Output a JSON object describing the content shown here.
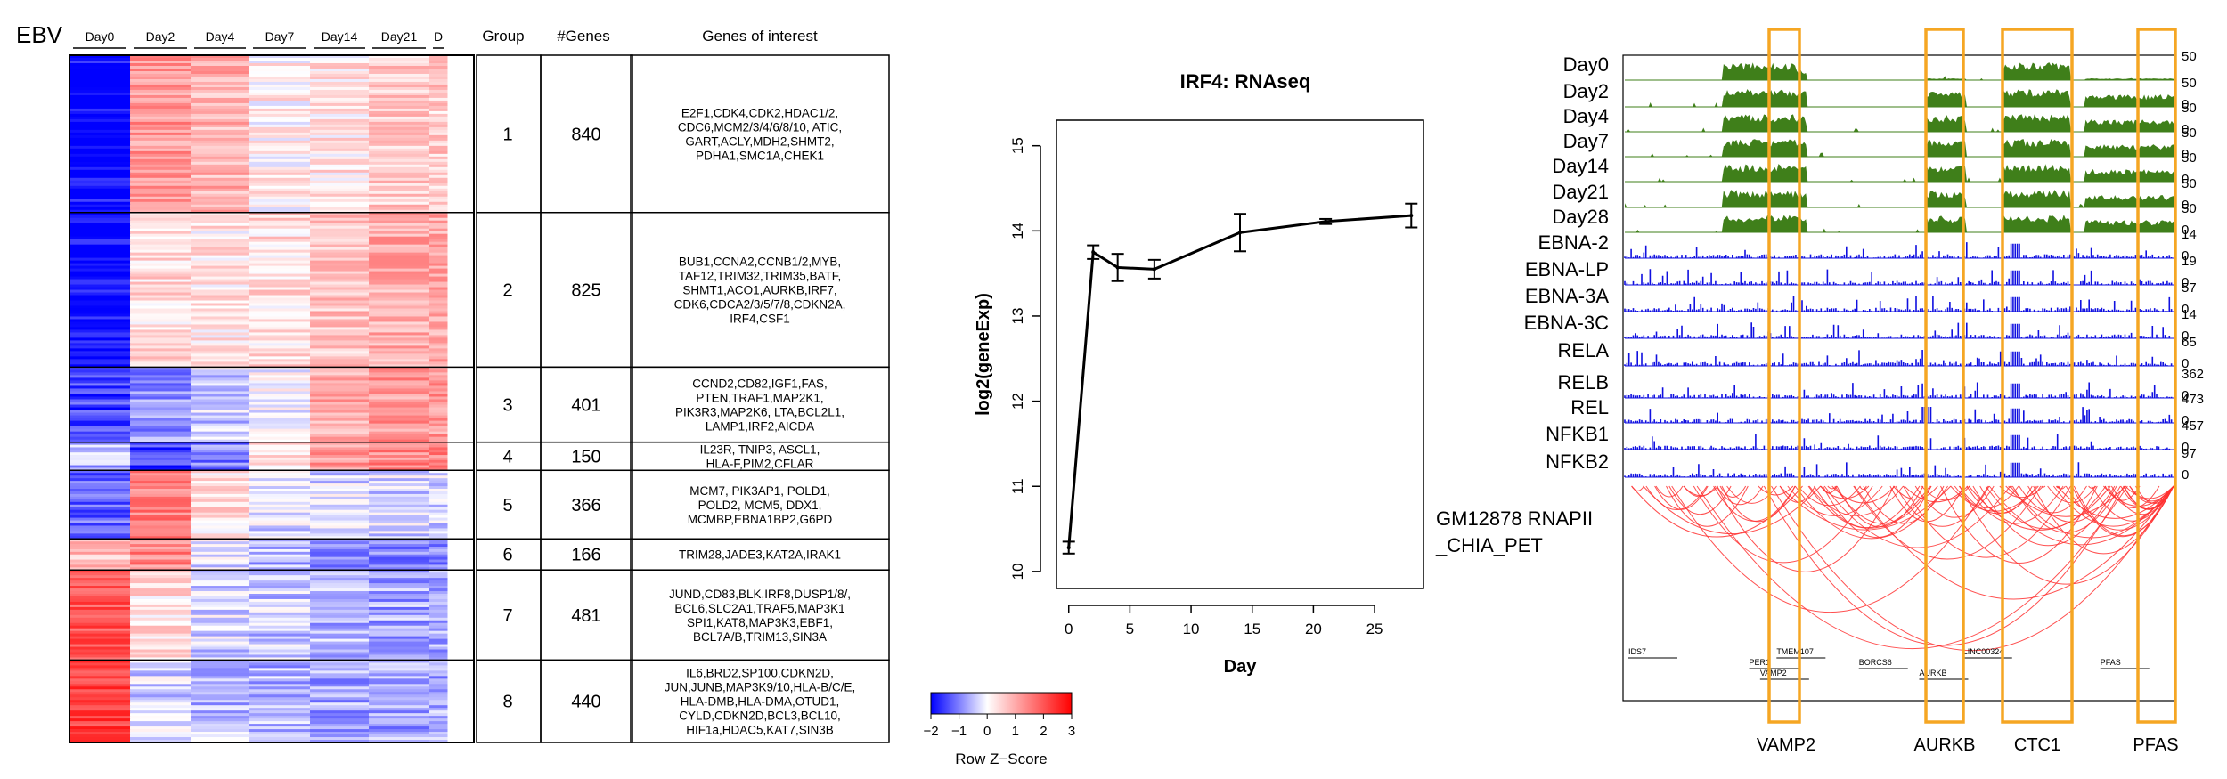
{
  "heatmap": {
    "ebv_label": "EBV",
    "day_headers": [
      "Day0",
      "Day2",
      "Day4",
      "Day7",
      "Day14",
      "Day21",
      "D"
    ],
    "col_group": "Group",
    "col_genes": "#Genes",
    "col_interest": "Genes of interest",
    "groups": [
      {
        "group": "1",
        "count": "840",
        "profile": [
          -2.0,
          1.2,
          0.9,
          0.2,
          0.3,
          0.6,
          0.6
        ],
        "genes": [
          "E2F1,CDK4,CDK2,HDAC1/2,",
          "CDC6,MCM2/3/4/6/8/10, ATIC,",
          "GART,ACLY,MDH2,SHMT2,",
          "PDHA1,SMC1A,CHEK1"
        ]
      },
      {
        "group": "2",
        "count": "825",
        "profile": [
          -2.0,
          0.4,
          0.3,
          0.4,
          0.7,
          1.0,
          1.0
        ],
        "genes": [
          "BUB1,CCNA2,CCNB1/2,MYB,",
          "TAF12,TRIM32,TRIM35,BATF,",
          "SHMT1,ACO1,AURKB,IRF7,",
          "CDK6,CDCA2/3/5/7/8,CDKN2A,",
          "IRF4,CSF1"
        ]
      },
      {
        "group": "3",
        "count": "401",
        "profile": [
          -1.5,
          -0.8,
          -0.4,
          0.0,
          1.0,
          1.2,
          1.2
        ],
        "genes": [
          "CCND2,CD82,IGF1,FAS,",
          "PTEN,TRAF1,MAP2K1,",
          "PIK3R3,MAP2K6, LTA,BCL2L1,",
          "LAMP1,IRF2,AICDA"
        ]
      },
      {
        "group": "4",
        "count": "150",
        "profile": [
          -0.6,
          -1.6,
          -1.0,
          0.3,
          1.2,
          1.4,
          1.4
        ],
        "genes": [
          "IL23R, TNIP3, ASCL1,",
          "HLA-F,PIM2,CFLAR"
        ]
      },
      {
        "group": "5",
        "count": "366",
        "profile": [
          -1.2,
          1.5,
          0.4,
          -0.3,
          -0.3,
          -0.3,
          -0.3
        ],
        "genes": [
          "MCM7, PIK3AP1, POLD1,",
          "POLD2, MCM5, DDX1,",
          "MCMBP,EBNA1BP2,G6PD"
        ]
      },
      {
        "group": "6",
        "count": "166",
        "profile": [
          0.8,
          1.4,
          -0.2,
          -0.6,
          -0.8,
          -0.9,
          -0.9
        ],
        "genes": [
          "TRIM28,JADE3,KAT2A,IRAK1"
        ]
      },
      {
        "group": "7",
        "count": "481",
        "profile": [
          2.0,
          0.4,
          -0.3,
          -0.4,
          -0.6,
          -0.7,
          -0.7
        ],
        "genes": [
          "JUND,CD83,BLK,IRF8,DUSP1/8/,",
          "BCL6,SLC2A1,TRAF5,MAP3K1",
          "SPI1,KAT8,MAP3K3,EBF1,",
          "BCL7A/B,TRIM13,SIN3A"
        ]
      },
      {
        "group": "8",
        "count": "440",
        "profile": [
          2.2,
          -0.3,
          -0.5,
          -0.6,
          -0.7,
          -0.7,
          -0.7
        ],
        "genes": [
          "IL6,BRD2,SP100,CDKN2D,",
          "JUN,JUNB,MAP3K9/10,HLA-B/C/E,",
          "HLA-DMB,HLA-DMA,OTUD1,",
          "CYLD,CDKN2D,BCL3,BCL10,",
          "HIF1a,HDAC5,KAT7,SIN3B"
        ]
      }
    ],
    "colorkey": {
      "title": "Row Z−Score",
      "ticks": [
        "−2",
        "−1",
        "0",
        "1",
        "2",
        "3"
      ],
      "low_color": "#0000ff",
      "mid_color": "#ffffff",
      "high_color": "#ff0000"
    }
  },
  "chart_data": {
    "type": "line",
    "title": "IRF4: RNAseq",
    "xlabel": "Day",
    "ylabel": "log2(geneExp)",
    "x": [
      0,
      2,
      4,
      7,
      14,
      21,
      28
    ],
    "y": [
      10.28,
      13.75,
      13.57,
      13.55,
      13.98,
      14.11,
      14.18
    ],
    "error": [
      0.07,
      0.08,
      0.16,
      0.11,
      0.22,
      0.03,
      0.14
    ],
    "xticks": [
      "0",
      "5",
      "10",
      "15",
      "20",
      "25"
    ],
    "yticks": [
      "10",
      "11",
      "12",
      "13",
      "14",
      "15"
    ],
    "xlim": [
      -1,
      29
    ],
    "ylim": [
      9.8,
      15.3
    ],
    "color": "#000000"
  },
  "browser": {
    "tracks": [
      {
        "label": "Day0",
        "type": "rna",
        "scale_top": "50",
        "scale_bottom": ""
      },
      {
        "label": "Day2",
        "type": "rna",
        "scale_top": "50",
        "scale_bottom": "0"
      },
      {
        "label": "Day4",
        "type": "rna",
        "scale_top": "50",
        "scale_bottom": "0"
      },
      {
        "label": "Day7",
        "type": "rna",
        "scale_top": "50",
        "scale_bottom": "0"
      },
      {
        "label": "Day14",
        "type": "rna",
        "scale_top": "50",
        "scale_bottom": "0"
      },
      {
        "label": "Day21",
        "type": "rna",
        "scale_top": "50",
        "scale_bottom": "0"
      },
      {
        "label": "Day28",
        "type": "rna",
        "scale_top": "50",
        "scale_bottom": "0"
      },
      {
        "label": "EBNA-2",
        "type": "chip",
        "scale_top": "14",
        "scale_bottom": "0"
      },
      {
        "label": "EBNA-LP",
        "type": "chip",
        "scale_top": "19",
        "scale_bottom": "0"
      },
      {
        "label": "EBNA-3A",
        "type": "chip",
        "scale_top": "57",
        "scale_bottom": "0"
      },
      {
        "label": "EBNA-3C",
        "type": "chip",
        "scale_top": "14",
        "scale_bottom": "0"
      },
      {
        "label": "RELA",
        "type": "chip",
        "scale_top": "65",
        "scale_bottom": "0"
      },
      {
        "label": "RELB",
        "type": "chip",
        "scale_top": "362",
        "scale_bottom": "0"
      },
      {
        "label": "REL",
        "type": "chip",
        "scale_top": "473",
        "scale_bottom": "0"
      },
      {
        "label": "NFKB1",
        "type": "chip",
        "scale_top": "457",
        "scale_bottom": "0"
      },
      {
        "label": "NFKB2",
        "type": "chip",
        "scale_top": "97",
        "scale_bottom": "0"
      }
    ],
    "chia_label_lines": [
      "GM12878 RNAPII",
      "_CHIA_PET"
    ],
    "rna_color": "#3f7f1a",
    "chip_color": "#1010e0",
    "loop_color": "#ff3030",
    "highlight_color": "#f5a623",
    "highlights": [
      "VAMP2",
      "AURKB",
      "CTC1",
      "PFAS"
    ],
    "gene_track_labels": [
      "IDS7",
      "PER1",
      "VAMP2",
      "TMEM107",
      "BORCS6",
      "AURKB",
      "LINC00324",
      "PFAS"
    ]
  }
}
